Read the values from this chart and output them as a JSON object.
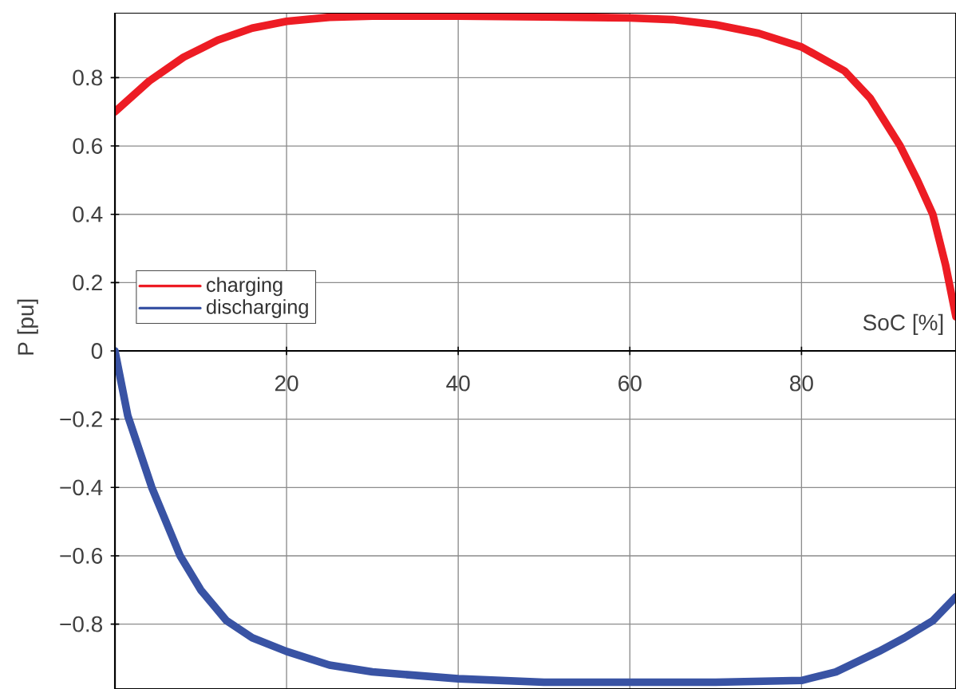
{
  "chart_data": {
    "type": "line",
    "xlabel": "SoC [%]",
    "ylabel": "P [pu]",
    "xlim": [
      0,
      98
    ],
    "ylim": [
      -0.99,
      0.99
    ],
    "xticks": [
      20,
      40,
      60,
      80
    ],
    "yticks": [
      {
        "value": -0.8,
        "label": "−0.8"
      },
      {
        "value": -0.6,
        "label": "−0.6"
      },
      {
        "value": -0.4,
        "label": "−0.4"
      },
      {
        "value": -0.2,
        "label": "−0.2"
      },
      0,
      0.2,
      0.4,
      0.6,
      0.8
    ],
    "grid": true,
    "legend": "left",
    "line_style": "solid",
    "marker": "none",
    "series": [
      {
        "name": "charging",
        "color": "#ed1c24",
        "x": [
          0,
          4,
          8,
          12,
          16,
          20,
          25,
          30,
          40,
          50,
          60,
          65,
          70,
          75,
          80,
          85,
          88,
          91.5,
          93.5,
          95.3,
          96.8,
          98
        ],
        "values": [
          0.7,
          0.79,
          0.86,
          0.91,
          0.945,
          0.965,
          0.977,
          0.98,
          0.98,
          0.978,
          0.975,
          0.97,
          0.955,
          0.93,
          0.89,
          0.82,
          0.74,
          0.6,
          0.5,
          0.4,
          0.25,
          0.1
        ]
      },
      {
        "name": "discharging",
        "color": "#3953a4",
        "x": [
          0,
          1.5,
          4.3,
          7.6,
          10,
          13,
          16,
          20,
          25,
          30,
          40,
          50,
          60,
          70,
          80,
          84,
          89,
          92,
          95.3,
          98
        ],
        "values": [
          0,
          -0.19,
          -0.4,
          -0.6,
          -0.7,
          -0.79,
          -0.84,
          -0.88,
          -0.92,
          -0.94,
          -0.96,
          -0.97,
          -0.97,
          -0.97,
          -0.965,
          -0.94,
          -0.88,
          -0.84,
          -0.79,
          -0.72
        ]
      }
    ]
  }
}
